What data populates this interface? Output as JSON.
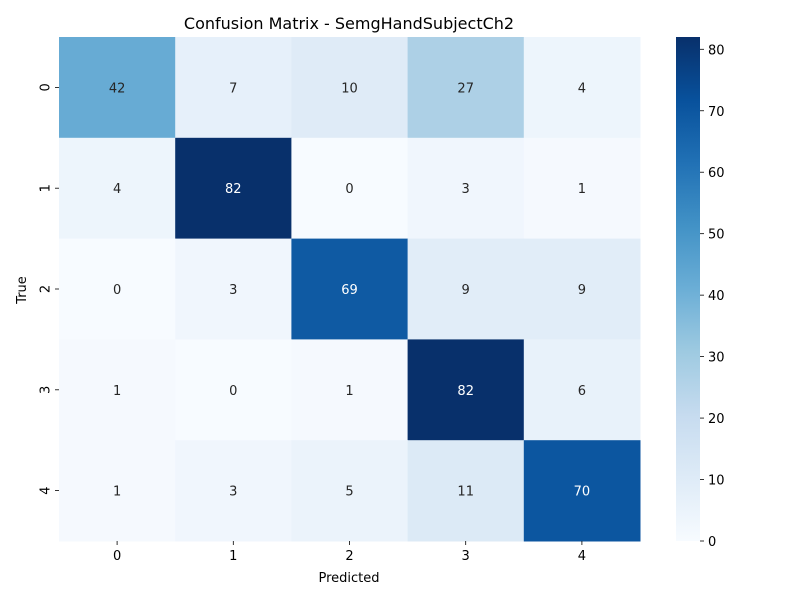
{
  "chart_data": {
    "type": "heatmap",
    "title": "Confusion Matrix - SemgHandSubjectCh2",
    "xlabel": "Predicted",
    "ylabel": "True",
    "x_categories": [
      "0",
      "1",
      "2",
      "3",
      "4"
    ],
    "y_categories": [
      "0",
      "1",
      "2",
      "3",
      "4"
    ],
    "matrix": [
      [
        42,
        7,
        10,
        27,
        4
      ],
      [
        4,
        82,
        0,
        3,
        1
      ],
      [
        0,
        3,
        69,
        9,
        9
      ],
      [
        1,
        0,
        1,
        82,
        6
      ],
      [
        1,
        3,
        5,
        11,
        70
      ]
    ],
    "colorbar": {
      "min": 0,
      "max": 82,
      "ticks": [
        0,
        10,
        20,
        30,
        40,
        50,
        60,
        70,
        80
      ]
    },
    "colormap": "Blues",
    "colormap_colors": [
      "#f7fbff",
      "#deebf7",
      "#c6dbef",
      "#9ecae1",
      "#6baed6",
      "#4292c6",
      "#2171b5",
      "#08519c",
      "#08306b"
    ]
  }
}
